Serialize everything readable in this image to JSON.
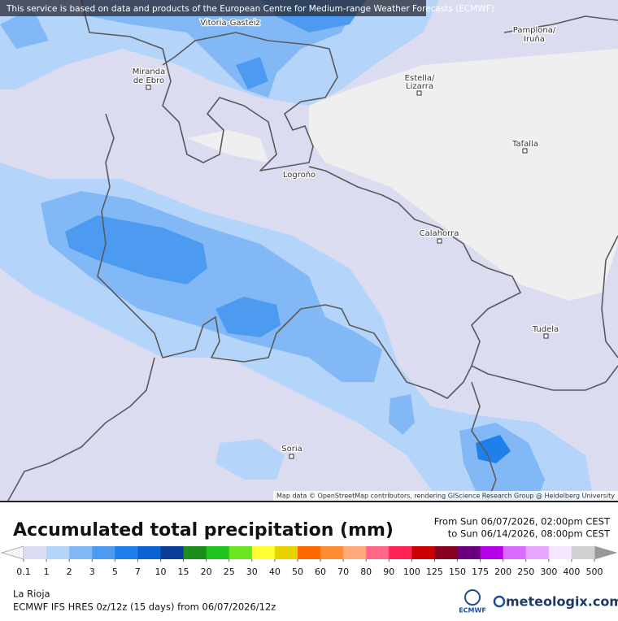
{
  "notice": "This service is based on data and products of the European Centre for Medium-range Weather Forecasts (ECMWF)",
  "places": [
    {
      "lines": [
        "Vitoria-Gasteiz"
      ]
    },
    {
      "lines": [
        "Pamplona/",
        "Iruña"
      ]
    },
    {
      "lines": [
        "Miranda",
        "de Ebro"
      ]
    },
    {
      "lines": [
        "Estella/",
        "Lizarra"
      ]
    },
    {
      "lines": [
        "Tafalla"
      ]
    },
    {
      "lines": [
        "Logroño"
      ]
    },
    {
      "lines": [
        "Calahorra"
      ]
    },
    {
      "lines": [
        "Tudela"
      ]
    },
    {
      "lines": [
        "Soria"
      ]
    }
  ],
  "attribution": "Map data © OpenStreetMap contributors, rendering GIScience Research Group @ Heidelberg University",
  "legend": {
    "title": "Accumulated total precipitation (mm)",
    "period": [
      "From Sun 06/07/2026, 02:00pm CEST",
      "to Sun 06/14/2026, 08:00pm CEST"
    ],
    "ticks": [
      0.1,
      1,
      2,
      3,
      5,
      7,
      10,
      15,
      20,
      25,
      30,
      40,
      50,
      60,
      70,
      80,
      90,
      100,
      125,
      150,
      175,
      200,
      250,
      300,
      400,
      500
    ],
    "colors": [
      "#dcdcf3",
      "#b4d4fa",
      "#82b8f5",
      "#4d9bf0",
      "#1f80ec",
      "#0b62d3",
      "#0a3c98",
      "#1c8c1c",
      "#22c422",
      "#6ae61e",
      "#ffff33",
      "#e6d300",
      "#ff6a00",
      "#ff8c33",
      "#ffaa78",
      "#ff6688",
      "#ff2255",
      "#cc0000",
      "#880022",
      "#6a0080",
      "#b400e6",
      "#d96bff",
      "#e6a6ff",
      "#f5e6ff",
      "#d0d0d0"
    ]
  },
  "footer": {
    "region": "La Rioja",
    "model": "ECMWF IFS HRES 0z/12z (15 days) from  06/07/2026/12z",
    "logo_left": "ECMWF",
    "logo_right": "meteologix.com"
  }
}
